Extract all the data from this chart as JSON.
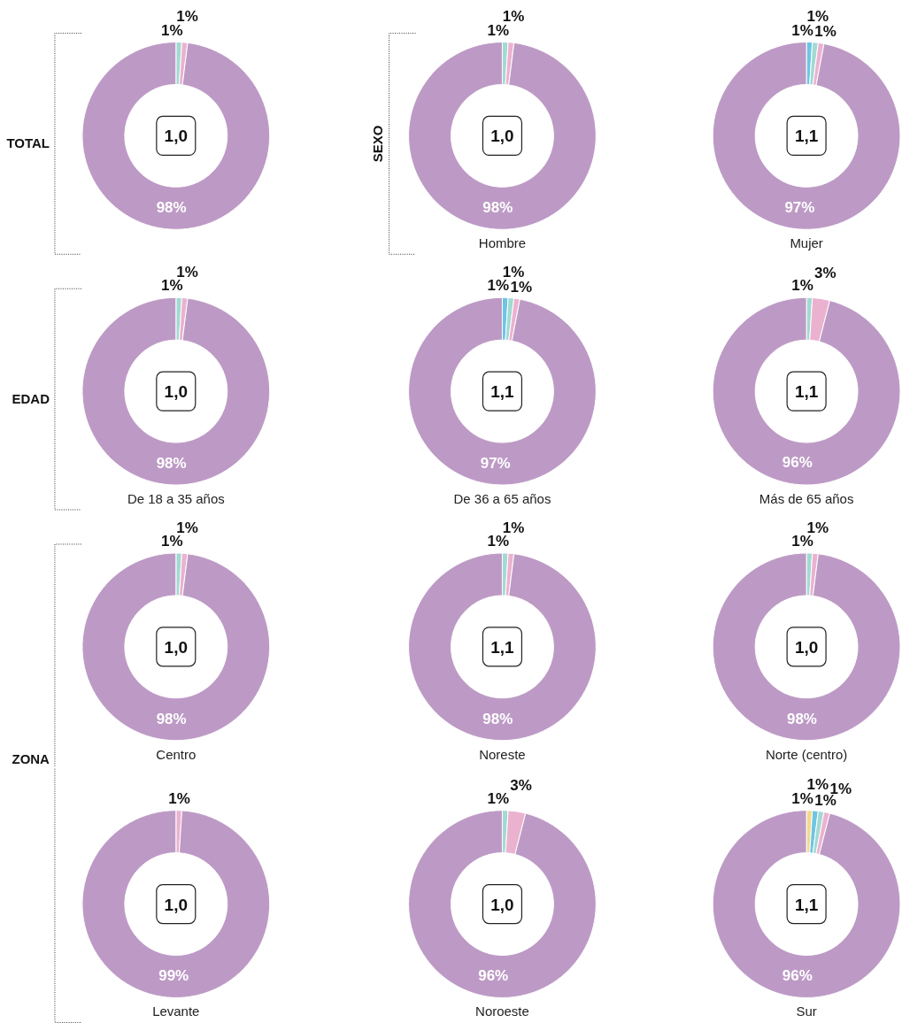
{
  "chart_data": [
    {
      "type": "donut",
      "ylabel": "TOTAL",
      "categories": [
        null,
        null,
        null
      ],
      "values": [
        1,
        1,
        98
      ],
      "colors": [
        "#a3d9d3",
        "#ebb2d0",
        "#bd9ac5"
      ],
      "value_labels": [
        "1%",
        "1%",
        "98%"
      ],
      "annotations": [
        "1,0"
      ]
    },
    {
      "type": "donut",
      "title": "Hombre",
      "ylabel": "SEXO",
      "categories": [
        null,
        null,
        null
      ],
      "values": [
        1,
        1,
        98
      ],
      "colors": [
        "#a3d9d3",
        "#ebb2d0",
        "#bd9ac5"
      ],
      "value_labels": [
        "1%",
        "1%",
        "98%"
      ],
      "annotations": [
        "1,0"
      ]
    },
    {
      "type": "donut",
      "title": "Mujer",
      "categories": [
        null,
        null,
        null,
        null
      ],
      "values": [
        1,
        1,
        1,
        97
      ],
      "colors": [
        "#6cc5e5",
        "#a3d9d3",
        "#ebb2d0",
        "#bd9ac5"
      ],
      "value_labels": [
        "1%",
        "1%",
        "1%",
        "97%"
      ],
      "annotations": [
        "1,1"
      ]
    },
    {
      "type": "donut",
      "title": "De 18 a 35 años",
      "ylabel": "EDAD",
      "categories": [
        null,
        null,
        null
      ],
      "values": [
        1,
        1,
        98
      ],
      "colors": [
        "#a3d9d3",
        "#ebb2d0",
        "#bd9ac5"
      ],
      "value_labels": [
        "1%",
        "1%",
        "98%"
      ],
      "annotations": [
        "1,0"
      ]
    },
    {
      "type": "donut",
      "title": "De 36 a 65 años",
      "categories": [
        null,
        null,
        null,
        null
      ],
      "values": [
        1,
        1,
        1,
        97
      ],
      "colors": [
        "#6cc5e5",
        "#a3d9d3",
        "#ebb2d0",
        "#bd9ac5"
      ],
      "value_labels": [
        "1%",
        "1%",
        "1%",
        "97%"
      ],
      "annotations": [
        "1,1"
      ]
    },
    {
      "type": "donut",
      "title": "Más de 65 años",
      "categories": [
        null,
        null,
        null
      ],
      "values": [
        1,
        3,
        96
      ],
      "colors": [
        "#a3d9d3",
        "#ebb2d0",
        "#bd9ac5"
      ],
      "value_labels": [
        "1%",
        "3%",
        "96%"
      ],
      "annotations": [
        "1,1"
      ]
    },
    {
      "type": "donut",
      "title": "Centro",
      "ylabel": "ZONA",
      "categories": [
        null,
        null,
        null
      ],
      "values": [
        1,
        1,
        98
      ],
      "colors": [
        "#a3d9d3",
        "#ebb2d0",
        "#bd9ac5"
      ],
      "value_labels": [
        "1%",
        "1%",
        "98%"
      ],
      "annotations": [
        "1,0"
      ]
    },
    {
      "type": "donut",
      "title": "Noreste",
      "categories": [
        null,
        null,
        null
      ],
      "values": [
        1,
        1,
        98
      ],
      "colors": [
        "#a3d9d3",
        "#ebb2d0",
        "#bd9ac5"
      ],
      "value_labels": [
        "1%",
        "1%",
        "98%"
      ],
      "annotations": [
        "1,1"
      ]
    },
    {
      "type": "donut",
      "title": "Norte (centro)",
      "categories": [
        null,
        null,
        null
      ],
      "values": [
        1,
        1,
        98
      ],
      "colors": [
        "#a3d9d3",
        "#ebb2d0",
        "#bd9ac5"
      ],
      "value_labels": [
        "1%",
        "1%",
        "98%"
      ],
      "annotations": [
        "1,0"
      ]
    },
    {
      "type": "donut",
      "title": "Levante",
      "categories": [
        null,
        null
      ],
      "values": [
        1,
        99
      ],
      "colors": [
        "#ebb2d0",
        "#bd9ac5"
      ],
      "value_labels": [
        "1%",
        "99%"
      ],
      "annotations": [
        "1,0"
      ]
    },
    {
      "type": "donut",
      "title": "Noroeste",
      "categories": [
        null,
        null,
        null
      ],
      "values": [
        1,
        3,
        96
      ],
      "colors": [
        "#a3d9d3",
        "#ebb2d0",
        "#bd9ac5"
      ],
      "value_labels": [
        "1%",
        "3%",
        "96%"
      ],
      "annotations": [
        "1,0"
      ]
    },
    {
      "type": "donut",
      "title": "Sur",
      "categories": [
        null,
        null,
        null,
        null,
        null
      ],
      "values": [
        1,
        1,
        1,
        1,
        96
      ],
      "colors": [
        "#f3da8a",
        "#6cc5e5",
        "#a3d9d3",
        "#ebb2d0",
        "#bd9ac5"
      ],
      "value_labels": [
        "1%",
        "1%",
        "1%",
        "1%",
        "96%"
      ],
      "annotations": [
        "1,1"
      ]
    }
  ]
}
